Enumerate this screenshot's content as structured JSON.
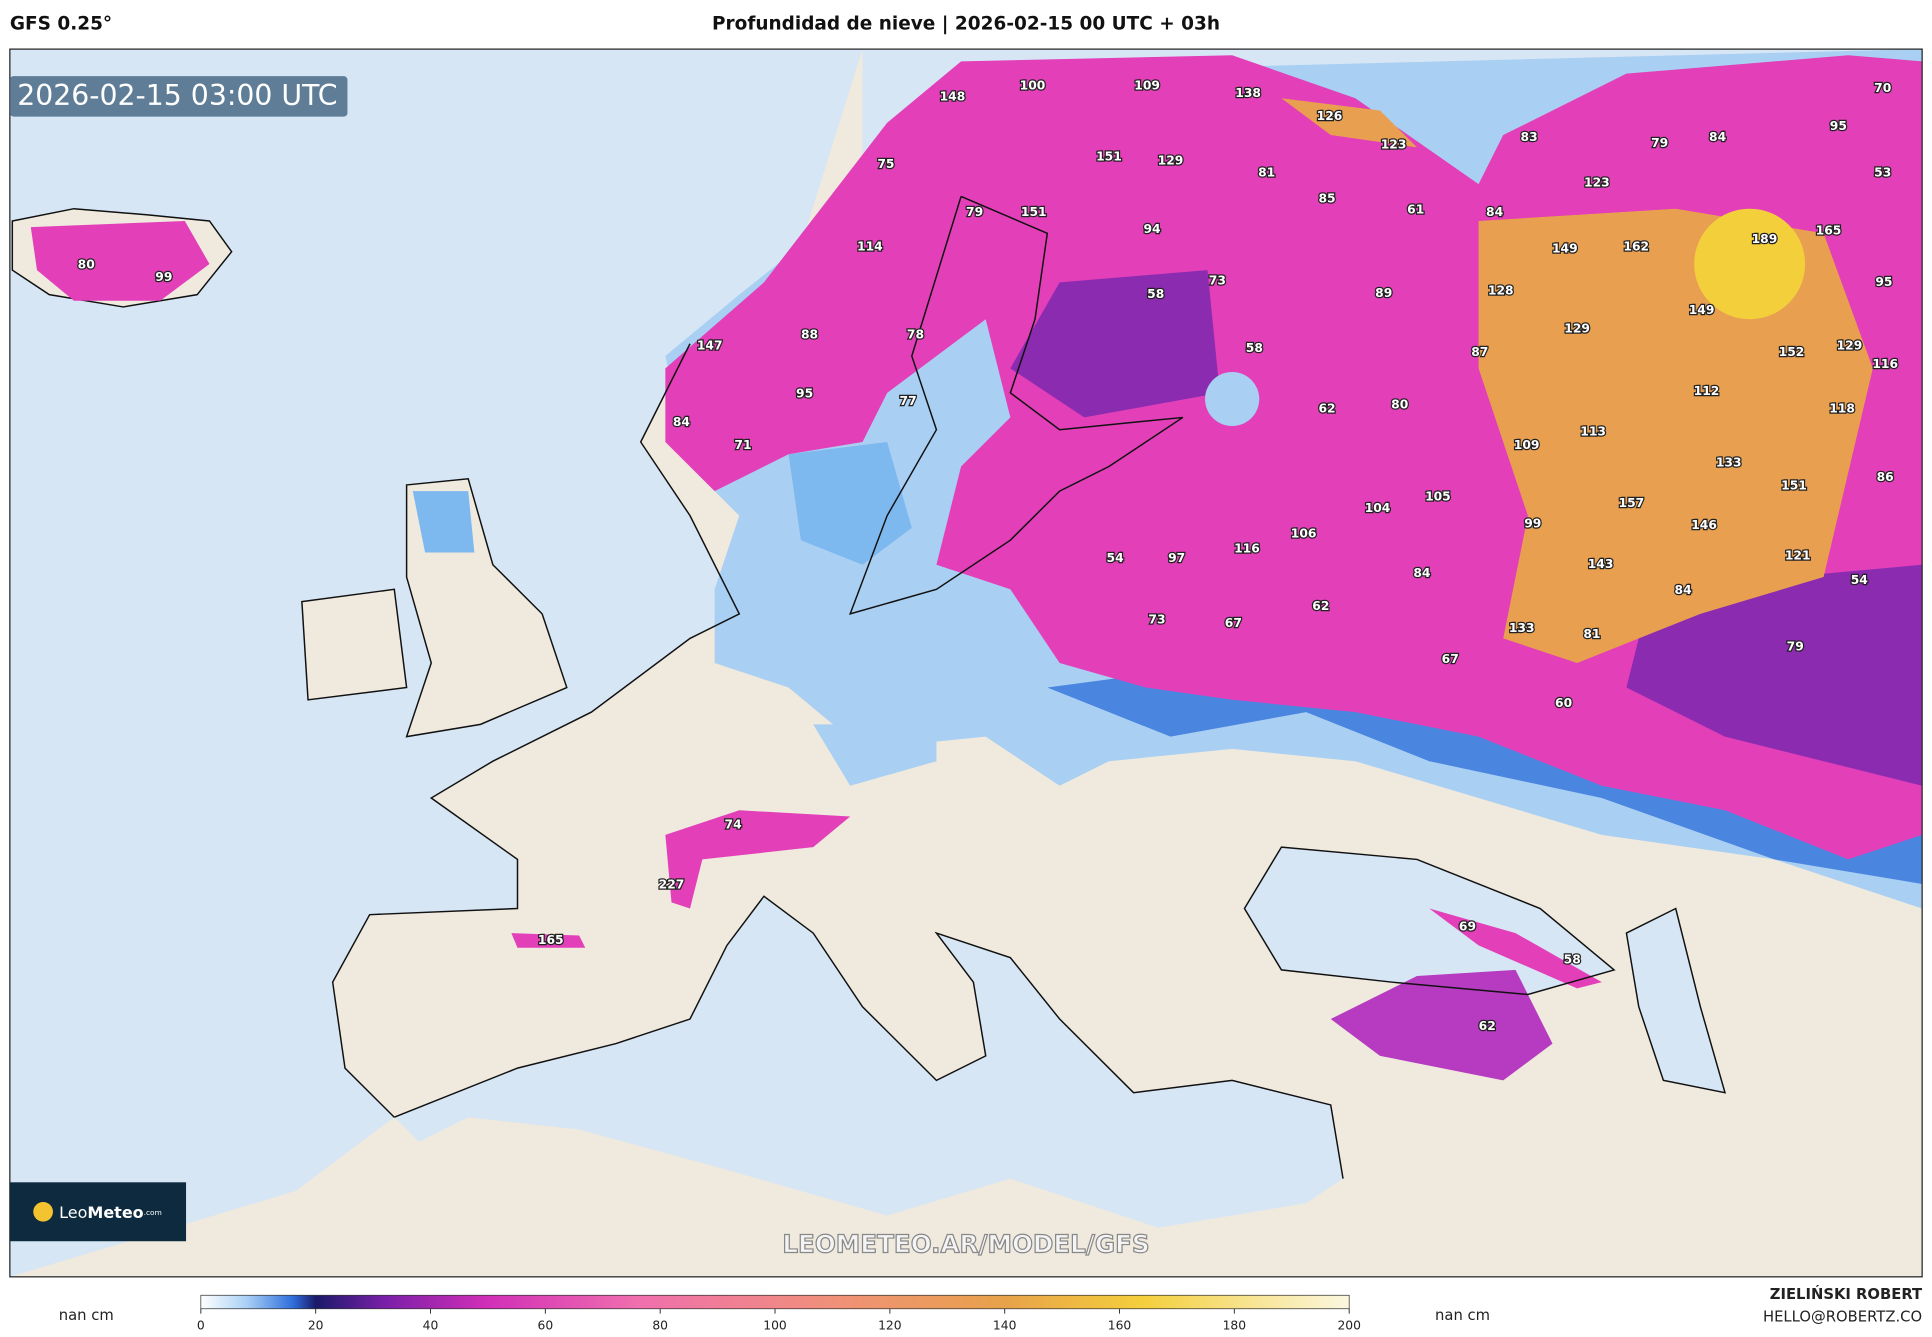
{
  "header": {
    "model": "GFS 0.25°",
    "title": "Profundidad de nieve | 2026-02-15 00 UTC + 03h"
  },
  "map": {
    "timestamp": "2026-02-15 03:00 UTC",
    "value_labels": [
      148,
      100,
      109,
      138,
      126,
      123,
      83,
      79,
      84,
      95,
      70,
      53,
      75,
      151,
      129,
      81,
      85,
      61,
      84,
      123,
      79,
      151,
      94,
      114,
      149,
      162,
      189,
      165,
      95,
      58,
      73,
      89,
      128,
      149,
      80,
      99,
      88,
      78,
      58,
      87,
      129,
      152,
      129,
      116,
      147,
      95,
      77,
      62,
      80,
      112,
      118,
      84,
      71,
      113,
      109,
      133,
      151,
      86,
      104,
      105,
      157,
      99,
      146,
      116,
      106,
      121,
      54,
      97,
      84,
      143,
      84,
      54,
      62,
      73,
      67,
      133,
      81,
      79,
      67,
      60,
      74,
      227,
      165,
      69,
      58,
      62
    ],
    "watermark": "LEOMETEO.AR/MODEL/GFS",
    "logo": {
      "name_light": "Leo",
      "name_bold": "Meteo",
      "suffix": ".com"
    }
  },
  "colorbar": {
    "lim": [
      0,
      200
    ],
    "ticks": [
      0,
      20,
      40,
      60,
      80,
      100,
      120,
      140,
      160,
      180,
      200
    ],
    "unit_left": "nan cm",
    "unit_right": "nan cm"
  },
  "footer": {
    "author": "ZIELIŃSKI ROBERT",
    "email": "HELLO@ROBERTZ.CO"
  }
}
